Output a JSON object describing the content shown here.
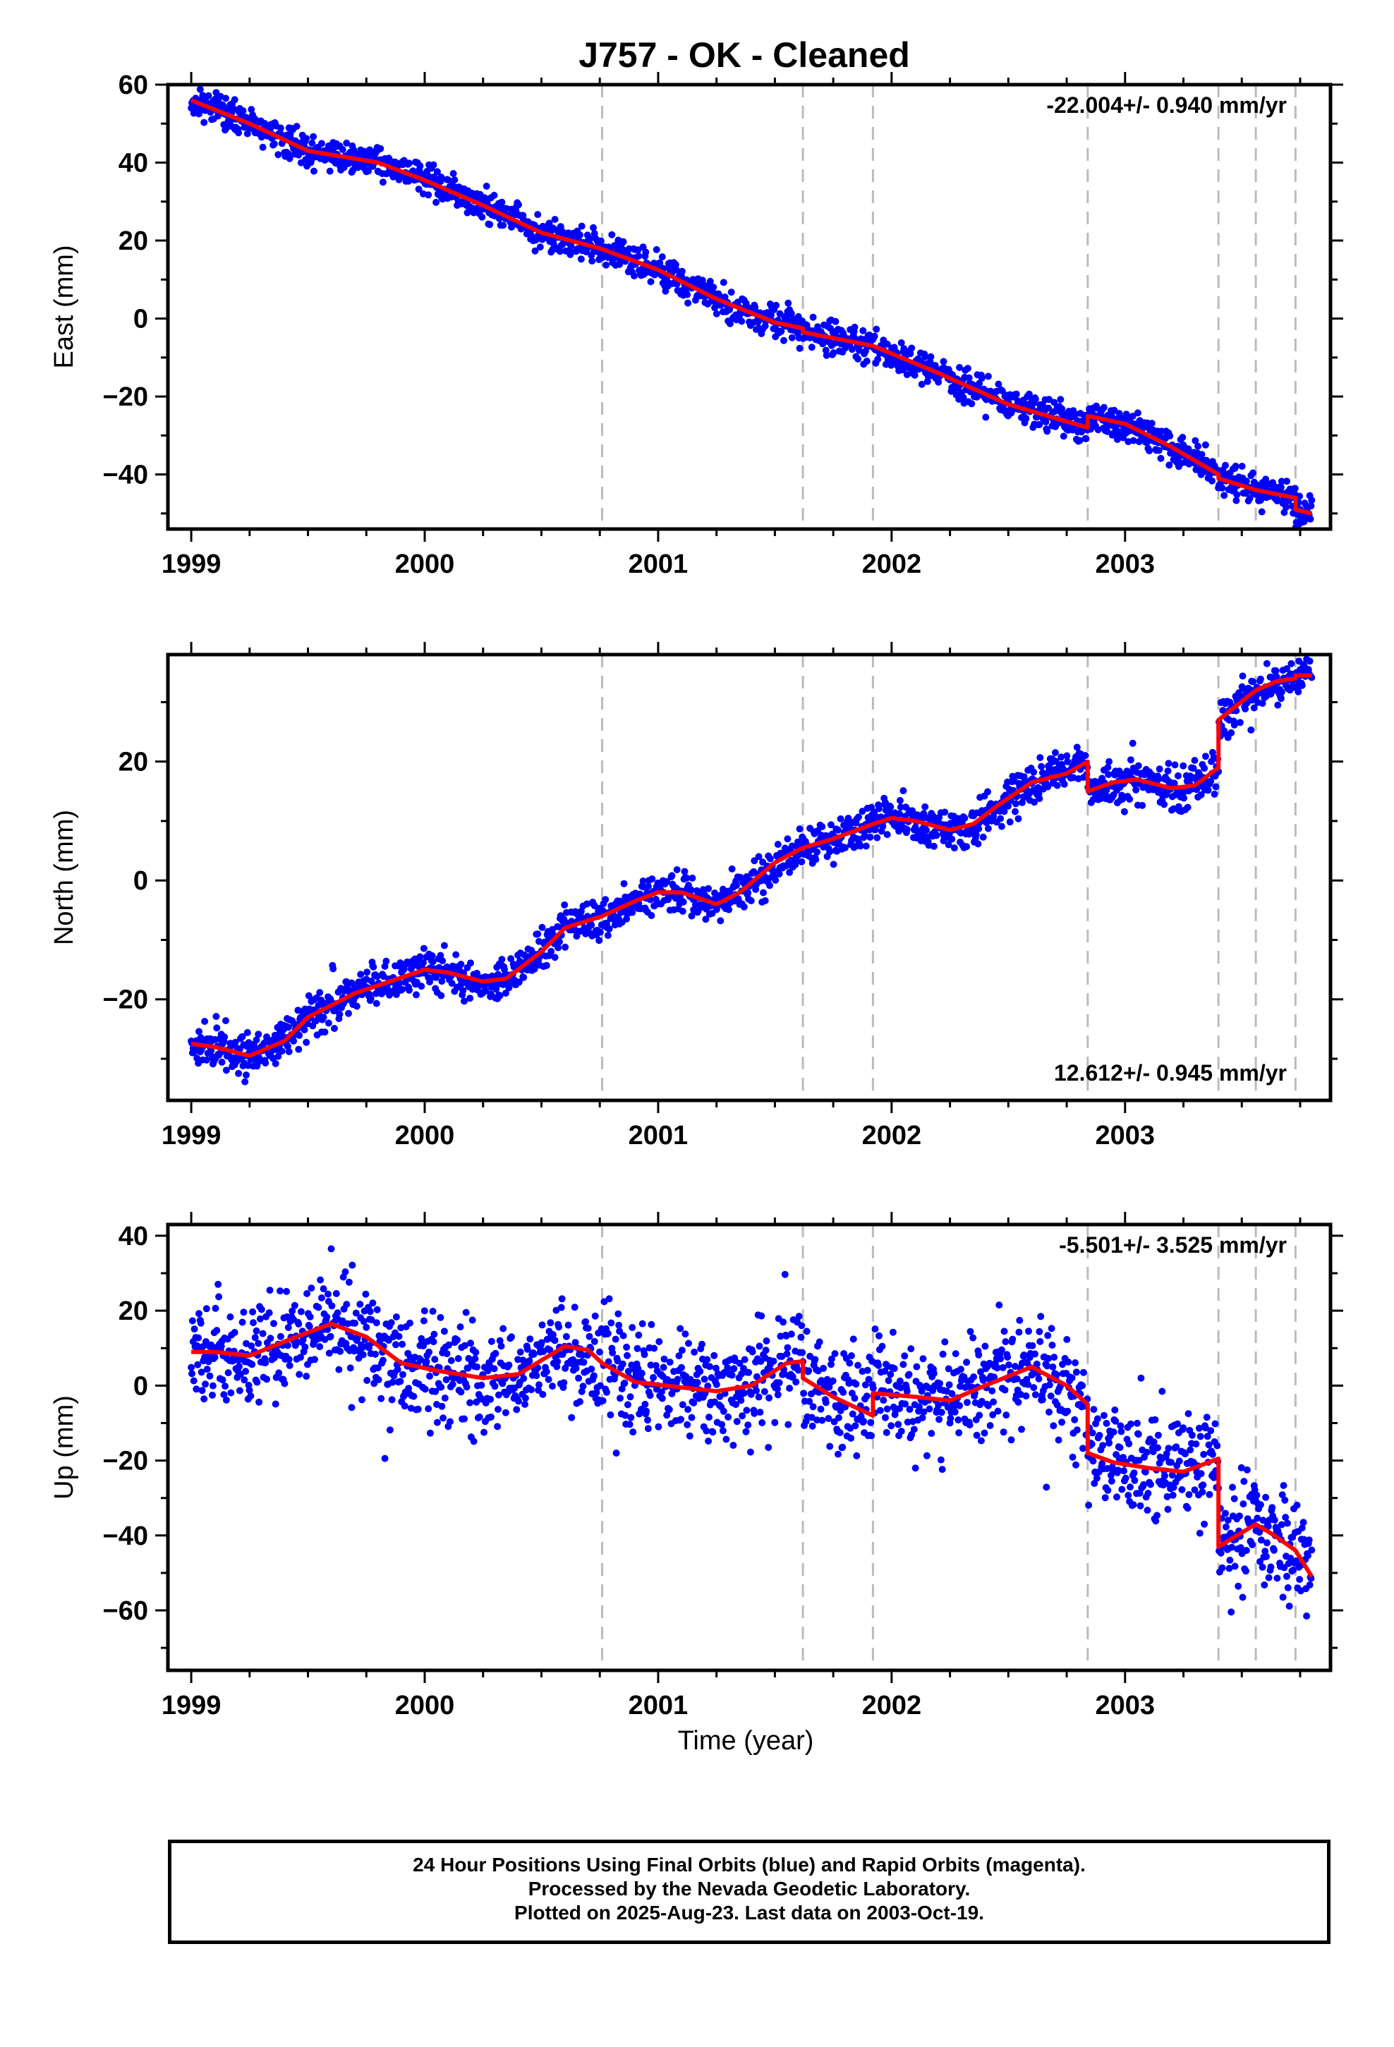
{
  "figure_title": "J757  - OK - Cleaned",
  "x_axis_label": "Time (year)",
  "footer": {
    "line1": "24 Hour Positions Using Final Orbits (blue) and Rapid Orbits (magenta).",
    "line2": "Processed by the Nevada Geodetic Laboratory.",
    "line3": "Plotted on 2025-Aug-23. Last data on 2003-Oct-19."
  },
  "colors": {
    "points": "#0000ff",
    "model": "#ff0000",
    "event_lines": "#bbbbbb",
    "frame": "#000000"
  },
  "chart_data": [
    {
      "type": "scatter",
      "title": "J757  - OK - Cleaned",
      "ylabel": "East (mm)",
      "xlabel": "",
      "xlim": [
        1998.9,
        2003.88
      ],
      "ylim": [
        -54,
        60
      ],
      "x_ticks": [
        1999,
        2000,
        2001,
        2002,
        2003
      ],
      "y_ticks": [
        -40,
        -20,
        0,
        20,
        40,
        60
      ],
      "rate_text": "-22.004+/- 0.940 mm/yr",
      "rate_position": "top-right",
      "events": [
        2000.76,
        2001.62,
        2001.92,
        2002.84,
        2003.4,
        2003.56,
        2003.73
      ],
      "series": [
        {
          "name": "model",
          "style": "line",
          "points": [
            [
              1999.0,
              56
            ],
            [
              1999.25,
              50
            ],
            [
              1999.5,
              43
            ],
            [
              1999.8,
              40
            ],
            [
              2000.0,
              35.5
            ],
            [
              2000.25,
              29
            ],
            [
              2000.5,
              22
            ],
            [
              2000.75,
              18
            ],
            [
              2001.0,
              12.5
            ],
            [
              2001.25,
              5
            ],
            [
              2001.5,
              -1
            ],
            [
              2001.62,
              -2.5
            ],
            [
              2001.62,
              -3.5
            ],
            [
              2001.92,
              -7
            ],
            [
              2002.2,
              -14
            ],
            [
              2002.5,
              -22
            ],
            [
              2002.84,
              -28
            ],
            [
              2002.84,
              -25
            ],
            [
              2003.0,
              -27
            ],
            [
              2003.2,
              -33
            ],
            [
              2003.4,
              -40
            ],
            [
              2003.4,
              -41
            ],
            [
              2003.56,
              -44
            ],
            [
              2003.73,
              -46
            ],
            [
              2003.73,
              -49
            ],
            [
              2003.8,
              -50
            ]
          ]
        },
        {
          "name": "daily positions",
          "style": "points",
          "generator": {
            "noise_mm": 2.0,
            "outlier_rate": 0.01,
            "outlier_mm": 4,
            "seed": 11
          }
        }
      ]
    },
    {
      "type": "scatter",
      "ylabel": "North (mm)",
      "xlabel": "",
      "xlim": [
        1998.9,
        2003.88
      ],
      "ylim": [
        -37,
        38
      ],
      "x_ticks": [
        1999,
        2000,
        2001,
        2002,
        2003
      ],
      "y_ticks": [
        -20,
        0,
        20
      ],
      "rate_text": "12.612+/- 0.945 mm/yr",
      "rate_position": "bottom-right",
      "events": [
        2000.76,
        2001.62,
        2001.92,
        2002.84,
        2003.4,
        2003.56,
        2003.73
      ],
      "series": [
        {
          "name": "model",
          "style": "line",
          "points": [
            [
              1999.0,
              -27.5
            ],
            [
              1999.1,
              -28
            ],
            [
              1999.25,
              -29.5
            ],
            [
              1999.4,
              -27
            ],
            [
              1999.5,
              -23
            ],
            [
              1999.7,
              -19
            ],
            [
              1999.85,
              -17
            ],
            [
              2000.0,
              -15
            ],
            [
              2000.1,
              -15.5
            ],
            [
              2000.25,
              -17
            ],
            [
              2000.35,
              -16.5
            ],
            [
              2000.5,
              -12
            ],
            [
              2000.6,
              -8
            ],
            [
              2000.76,
              -6
            ],
            [
              2000.9,
              -3.5
            ],
            [
              2001.0,
              -2
            ],
            [
              2001.1,
              -2
            ],
            [
              2001.25,
              -4
            ],
            [
              2001.35,
              -2
            ],
            [
              2001.5,
              3
            ],
            [
              2001.62,
              5.5
            ],
            [
              2001.75,
              7
            ],
            [
              2001.92,
              9.5
            ],
            [
              2002.0,
              10.5
            ],
            [
              2002.1,
              10
            ],
            [
              2002.25,
              8.5
            ],
            [
              2002.35,
              9.5
            ],
            [
              2002.45,
              12.5
            ],
            [
              2002.6,
              16.5
            ],
            [
              2002.75,
              18
            ],
            [
              2002.84,
              20
            ],
            [
              2002.84,
              15
            ],
            [
              2002.95,
              16.5
            ],
            [
              2003.05,
              17
            ],
            [
              2003.2,
              15.5
            ],
            [
              2003.3,
              16
            ],
            [
              2003.4,
              19
            ],
            [
              2003.4,
              27
            ],
            [
              2003.48,
              29.5
            ],
            [
              2003.56,
              32
            ],
            [
              2003.65,
              33.5
            ],
            [
              2003.73,
              34
            ],
            [
              2003.73,
              34.5
            ],
            [
              2003.8,
              34.5
            ]
          ]
        },
        {
          "name": "daily positions",
          "style": "points",
          "generator": {
            "noise_mm": 1.7,
            "outlier_rate": 0.01,
            "outlier_mm": 4,
            "seed": 23
          }
        }
      ]
    },
    {
      "type": "scatter",
      "ylabel": "Up (mm)",
      "xlabel": "Time (year)",
      "xlim": [
        1998.9,
        2003.88
      ],
      "ylim": [
        -76,
        43
      ],
      "x_ticks": [
        1999,
        2000,
        2001,
        2002,
        2003
      ],
      "y_ticks": [
        -60,
        -40,
        -20,
        0,
        20,
        40
      ],
      "rate_text": "-5.501+/- 3.525 mm/yr",
      "rate_position": "top-right",
      "events": [
        2000.76,
        2001.62,
        2001.92,
        2002.84,
        2003.4,
        2003.56,
        2003.73
      ],
      "series": [
        {
          "name": "model",
          "style": "line",
          "points": [
            [
              1999.0,
              9
            ],
            [
              1999.1,
              9
            ],
            [
              1999.25,
              8
            ],
            [
              1999.45,
              13
            ],
            [
              1999.6,
              16.5
            ],
            [
              1999.75,
              13
            ],
            [
              1999.9,
              6
            ],
            [
              2000.05,
              4
            ],
            [
              2000.25,
              2
            ],
            [
              2000.4,
              3
            ],
            [
              2000.6,
              10.5
            ],
            [
              2000.7,
              9.5
            ],
            [
              2000.76,
              6
            ],
            [
              2000.9,
              1
            ],
            [
              2001.1,
              -0.5
            ],
            [
              2001.25,
              -1.5
            ],
            [
              2001.4,
              0
            ],
            [
              2001.55,
              6
            ],
            [
              2001.62,
              6.5
            ],
            [
              2001.62,
              2
            ],
            [
              2001.75,
              -3
            ],
            [
              2001.92,
              -8
            ],
            [
              2001.92,
              -2
            ],
            [
              2002.1,
              -3
            ],
            [
              2002.25,
              -4
            ],
            [
              2002.4,
              0
            ],
            [
              2002.6,
              5
            ],
            [
              2002.75,
              0
            ],
            [
              2002.84,
              -5
            ],
            [
              2002.84,
              -18
            ],
            [
              2002.95,
              -20.5
            ],
            [
              2003.1,
              -22
            ],
            [
              2003.25,
              -23
            ],
            [
              2003.4,
              -19.5
            ],
            [
              2003.4,
              -43
            ],
            [
              2003.48,
              -40
            ],
            [
              2003.56,
              -37
            ],
            [
              2003.64,
              -40
            ],
            [
              2003.73,
              -44
            ],
            [
              2003.8,
              -51
            ]
          ]
        },
        {
          "name": "daily positions",
          "style": "points",
          "generator": {
            "noise_mm": 7.0,
            "outlier_rate": 0.015,
            "outlier_mm": 18,
            "seed": 47
          }
        }
      ]
    }
  ]
}
